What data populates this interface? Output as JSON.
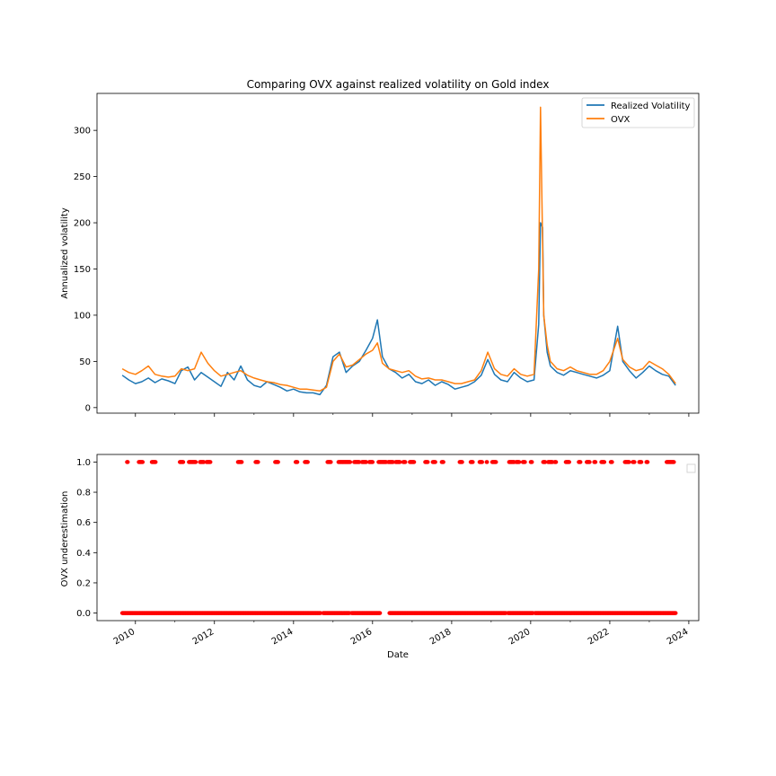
{
  "chart_data": [
    {
      "type": "line",
      "title": "Comparing OVX against realized volatility on Gold index",
      "xlabel": "",
      "ylabel": "Annualized volatility",
      "xlim": [
        "2009-01-11",
        "2024-04-02"
      ],
      "ylim": [
        -6,
        340
      ],
      "yticks": [
        0,
        50,
        100,
        150,
        200,
        250,
        300
      ],
      "grid": false,
      "legend": "top-right",
      "series": [
        {
          "name": "Realized Volatility",
          "color": "#1f77b4",
          "x": [
            "2009-09-01",
            "2009-11-01",
            "2010-01-01",
            "2010-03-01",
            "2010-05-01",
            "2010-07-01",
            "2010-09-01",
            "2010-11-01",
            "2011-01-01",
            "2011-03-01",
            "2011-05-01",
            "2011-07-01",
            "2011-09-01",
            "2011-11-01",
            "2012-01-01",
            "2012-03-01",
            "2012-05-01",
            "2012-07-01",
            "2012-09-01",
            "2012-11-01",
            "2013-01-01",
            "2013-03-01",
            "2013-05-01",
            "2013-07-01",
            "2013-09-01",
            "2013-11-01",
            "2014-01-01",
            "2014-03-01",
            "2014-05-01",
            "2014-07-01",
            "2014-09-01",
            "2014-11-01",
            "2015-01-01",
            "2015-03-01",
            "2015-05-01",
            "2015-07-01",
            "2015-09-01",
            "2015-11-01",
            "2016-01-01",
            "2016-02-15",
            "2016-04-01",
            "2016-06-01",
            "2016-08-01",
            "2016-10-01",
            "2016-12-01",
            "2017-02-01",
            "2017-04-01",
            "2017-06-01",
            "2017-08-01",
            "2017-10-01",
            "2017-12-01",
            "2018-02-01",
            "2018-04-01",
            "2018-06-01",
            "2018-08-01",
            "2018-10-01",
            "2018-12-01",
            "2019-02-01",
            "2019-04-01",
            "2019-06-01",
            "2019-08-01",
            "2019-10-01",
            "2019-12-01",
            "2020-02-01",
            "2020-03-15",
            "2020-04-01",
            "2020-04-20",
            "2020-05-01",
            "2020-06-01",
            "2020-07-01",
            "2020-09-01",
            "2020-11-01",
            "2021-01-01",
            "2021-03-01",
            "2021-05-01",
            "2021-07-01",
            "2021-09-01",
            "2021-11-01",
            "2022-01-01",
            "2022-03-15",
            "2022-05-01",
            "2022-07-01",
            "2022-09-01",
            "2022-11-01",
            "2023-01-01",
            "2023-03-01",
            "2023-05-01",
            "2023-07-01",
            "2023-09-01"
          ],
          "values": [
            35,
            30,
            26,
            28,
            32,
            27,
            31,
            29,
            26,
            40,
            44,
            30,
            38,
            33,
            28,
            23,
            38,
            30,
            45,
            30,
            24,
            22,
            28,
            25,
            22,
            18,
            20,
            17,
            16,
            16,
            14,
            24,
            55,
            60,
            38,
            45,
            50,
            62,
            75,
            95,
            55,
            42,
            38,
            32,
            36,
            28,
            26,
            30,
            24,
            28,
            25,
            20,
            22,
            24,
            28,
            35,
            52,
            36,
            30,
            28,
            38,
            32,
            28,
            30,
            90,
            200,
            195,
            100,
            60,
            45,
            38,
            35,
            40,
            38,
            36,
            34,
            32,
            35,
            40,
            88,
            50,
            40,
            32,
            38,
            45,
            40,
            36,
            34,
            24
          ]
        },
        {
          "name": "OVX",
          "color": "#ff7f0e",
          "x": [
            "2009-09-01",
            "2009-11-01",
            "2010-01-01",
            "2010-03-01",
            "2010-05-01",
            "2010-07-01",
            "2010-09-01",
            "2010-11-01",
            "2011-01-01",
            "2011-03-01",
            "2011-05-01",
            "2011-07-01",
            "2011-09-01",
            "2011-11-01",
            "2012-01-01",
            "2012-03-01",
            "2012-05-01",
            "2012-07-01",
            "2012-09-01",
            "2012-11-01",
            "2013-01-01",
            "2013-03-01",
            "2013-05-01",
            "2013-07-01",
            "2013-09-01",
            "2013-11-01",
            "2014-01-01",
            "2014-03-01",
            "2014-05-01",
            "2014-07-01",
            "2014-09-01",
            "2014-11-01",
            "2015-01-01",
            "2015-03-01",
            "2015-05-01",
            "2015-07-01",
            "2015-09-01",
            "2015-11-01",
            "2016-01-01",
            "2016-02-15",
            "2016-04-01",
            "2016-06-01",
            "2016-08-01",
            "2016-10-01",
            "2016-12-01",
            "2017-02-01",
            "2017-04-01",
            "2017-06-01",
            "2017-08-01",
            "2017-10-01",
            "2017-12-01",
            "2018-02-01",
            "2018-04-01",
            "2018-06-01",
            "2018-08-01",
            "2018-10-01",
            "2018-12-01",
            "2019-02-01",
            "2019-04-01",
            "2019-06-01",
            "2019-08-01",
            "2019-10-01",
            "2019-12-01",
            "2020-02-01",
            "2020-03-15",
            "2020-04-01",
            "2020-04-20",
            "2020-05-01",
            "2020-06-01",
            "2020-07-01",
            "2020-09-01",
            "2020-11-01",
            "2021-01-01",
            "2021-03-01",
            "2021-05-01",
            "2021-07-01",
            "2021-09-01",
            "2021-11-01",
            "2022-01-01",
            "2022-03-15",
            "2022-05-01",
            "2022-07-01",
            "2022-09-01",
            "2022-11-01",
            "2023-01-01",
            "2023-03-01",
            "2023-05-01",
            "2023-07-01",
            "2023-09-01"
          ],
          "values": [
            42,
            38,
            36,
            40,
            45,
            36,
            34,
            33,
            34,
            42,
            40,
            42,
            60,
            48,
            40,
            34,
            36,
            38,
            40,
            35,
            32,
            30,
            28,
            27,
            25,
            24,
            22,
            20,
            20,
            19,
            18,
            22,
            50,
            58,
            44,
            46,
            52,
            58,
            62,
            70,
            48,
            42,
            40,
            38,
            40,
            34,
            31,
            32,
            30,
            30,
            28,
            26,
            26,
            28,
            30,
            40,
            60,
            42,
            36,
            34,
            42,
            36,
            34,
            36,
            150,
            325,
            180,
            100,
            68,
            50,
            42,
            40,
            44,
            40,
            38,
            36,
            36,
            40,
            50,
            75,
            52,
            44,
            40,
            42,
            50,
            46,
            42,
            36,
            26
          ]
        }
      ]
    },
    {
      "type": "scatter",
      "title": "",
      "xlabel": "Date",
      "ylabel": "OVX underestimation",
      "xlim": [
        "2009-01-11",
        "2024-04-02"
      ],
      "ylim": [
        -0.05,
        1.05
      ],
      "yticks": [
        0.0,
        0.2,
        0.4,
        0.6,
        0.8,
        1.0
      ],
      "ytick_labels": [
        "0.0",
        "0.2",
        "0.4",
        "0.6",
        "0.8",
        "1.0"
      ],
      "xticks": [
        "2010-01-01",
        "2012-01-01",
        "2014-01-01",
        "2016-01-01",
        "2018-01-01",
        "2020-01-01",
        "2022-01-01",
        "2024-01-01"
      ],
      "xtick_labels": [
        "2010",
        "2012",
        "2014",
        "2016",
        "2018",
        "2020",
        "2022",
        "2024"
      ],
      "grid": false,
      "legend": "top-right",
      "color": "#ff0000",
      "series": [
        {
          "value": 1,
          "ranges": [
            [
              "2009-10-15",
              "2009-10-25"
            ],
            [
              "2010-02-01",
              "2010-03-10"
            ],
            [
              "2010-06-01",
              "2010-07-10"
            ],
            [
              "2011-02-15",
              "2011-03-20"
            ],
            [
              "2011-05-10",
              "2011-07-15"
            ],
            [
              "2011-08-20",
              "2011-09-25"
            ],
            [
              "2011-10-20",
              "2011-11-25"
            ],
            [
              "2012-08-05",
              "2012-09-10"
            ],
            [
              "2013-01-15",
              "2013-02-10"
            ],
            [
              "2013-07-15",
              "2013-08-15"
            ],
            [
              "2014-01-20",
              "2014-02-05"
            ],
            [
              "2014-04-15",
              "2014-05-15"
            ],
            [
              "2014-11-10",
              "2014-12-15"
            ],
            [
              "2015-02-20",
              "2015-06-10"
            ],
            [
              "2015-07-15",
              "2015-09-01"
            ],
            [
              "2015-09-25",
              "2015-11-05"
            ],
            [
              "2015-12-01",
              "2016-01-05"
            ],
            [
              "2016-02-25",
              "2016-05-10"
            ],
            [
              "2016-05-25",
              "2016-07-10"
            ],
            [
              "2016-08-01",
              "2016-09-10"
            ],
            [
              "2016-10-10",
              "2016-10-30"
            ],
            [
              "2016-12-10",
              "2017-01-20"
            ],
            [
              "2017-05-01",
              "2017-05-25"
            ],
            [
              "2017-07-10",
              "2017-08-05"
            ],
            [
              "2017-10-01",
              "2017-10-20"
            ],
            [
              "2018-03-15",
              "2018-04-10"
            ],
            [
              "2018-06-25",
              "2018-07-15"
            ],
            [
              "2018-09-15",
              "2018-10-10"
            ],
            [
              "2018-11-20",
              "2018-11-25"
            ],
            [
              "2019-01-10",
              "2019-02-15"
            ],
            [
              "2019-06-15",
              "2019-08-05"
            ],
            [
              "2019-08-20",
              "2019-09-20"
            ],
            [
              "2019-10-20",
              "2019-11-10"
            ],
            [
              "2020-01-01",
              "2020-01-15"
            ],
            [
              "2020-04-25",
              "2020-05-15"
            ],
            [
              "2020-06-10",
              "2020-07-20"
            ],
            [
              "2020-08-10",
              "2020-08-25"
            ],
            [
              "2020-11-20",
              "2020-12-25"
            ],
            [
              "2021-03-20",
              "2021-04-05"
            ],
            [
              "2021-06-01",
              "2021-06-30"
            ],
            [
              "2021-08-10",
              "2021-08-25"
            ],
            [
              "2021-10-15",
              "2021-11-15"
            ],
            [
              "2022-01-10",
              "2022-01-25"
            ],
            [
              "2022-05-20",
              "2022-06-30"
            ],
            [
              "2022-08-01",
              "2022-08-20"
            ],
            [
              "2022-09-30",
              "2022-10-20"
            ],
            [
              "2022-12-05",
              "2022-12-20"
            ],
            [
              "2023-06-10",
              "2023-08-20"
            ]
          ]
        },
        {
          "value": 0,
          "ranges": [
            [
              "2009-09-01",
              "2014-09-10"
            ],
            [
              "2014-10-01",
              "2015-06-05"
            ],
            [
              "2015-06-20",
              "2016-03-10"
            ],
            [
              "2016-06-05",
              "2019-05-20"
            ],
            [
              "2019-06-05",
              "2020-01-25"
            ],
            [
              "2020-02-10",
              "2023-09-05"
            ]
          ]
        }
      ]
    }
  ]
}
